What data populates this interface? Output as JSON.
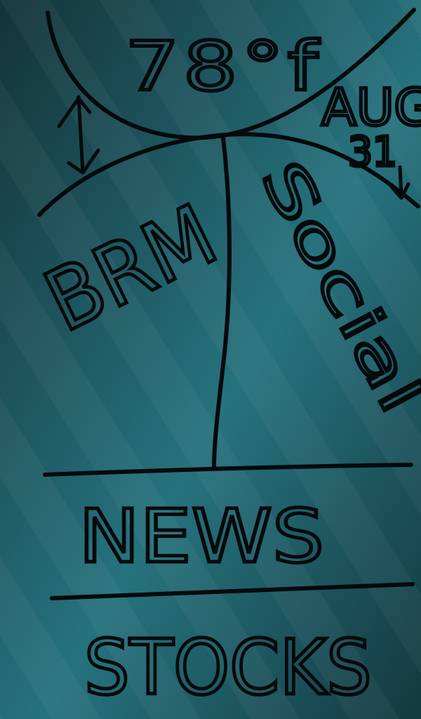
{
  "colors": {
    "background_dark": "#173f47",
    "background_light": "#2a7f8c",
    "stripe": "#1d5560",
    "ink": "#050a0c"
  },
  "weather": {
    "temperature": "78°f"
  },
  "date": {
    "month": "AUG",
    "day": "31"
  },
  "sections": {
    "left": "BRM",
    "right": "Social",
    "news": "NEWS",
    "stocks": "STOCKS"
  }
}
